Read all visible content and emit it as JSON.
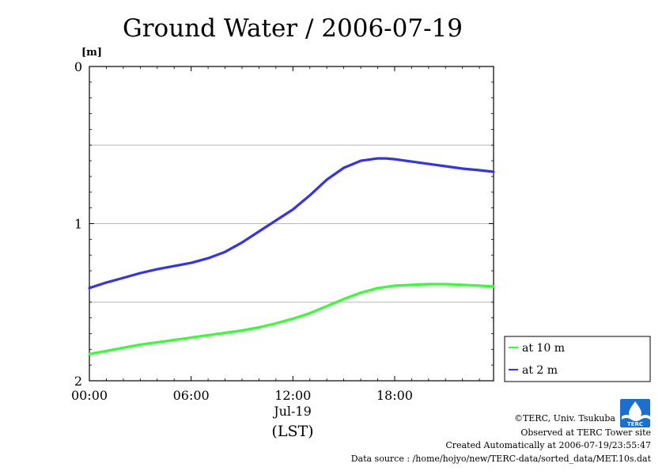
{
  "chart_data": {
    "type": "line",
    "title": "Ground Water / 2006-07-19",
    "ylabel_unit": "[m]",
    "yaxis_inverted": true,
    "ylim": [
      0,
      2
    ],
    "yticks": [
      {
        "value": 0,
        "label": "0"
      },
      {
        "value": 1,
        "label": "1"
      },
      {
        "value": 2,
        "label": "2"
      }
    ],
    "ygrid": [
      0.5,
      1,
      1.5
    ],
    "xlim_hours": [
      0,
      23.833
    ],
    "xticks": [
      {
        "hour": 0,
        "label": "00:00"
      },
      {
        "hour": 6,
        "label": "06:00"
      },
      {
        "hour": 12,
        "label": "12:00"
      },
      {
        "hour": 18,
        "label": "18:00"
      }
    ],
    "xdate_label": "Jul-19",
    "xtimezone_label": "(LST)",
    "grid": true,
    "legend_position": "right-bottom",
    "series": [
      {
        "name": "at 10 m",
        "color": "#33ff33",
        "hours": [
          0,
          1,
          2,
          3,
          4,
          5,
          6,
          7,
          8,
          9,
          10,
          11,
          12,
          13,
          14,
          15,
          16,
          17,
          18,
          19,
          20,
          21,
          22,
          23,
          23.83
        ],
        "values": [
          1.83,
          1.81,
          1.79,
          1.77,
          1.755,
          1.74,
          1.725,
          1.71,
          1.695,
          1.68,
          1.66,
          1.635,
          1.605,
          1.57,
          1.525,
          1.48,
          1.44,
          1.41,
          1.395,
          1.39,
          1.385,
          1.385,
          1.39,
          1.395,
          1.4
        ]
      },
      {
        "name": "at 2 m",
        "color": "#3333ee",
        "hours": [
          0,
          1,
          2,
          3,
          4,
          5,
          6,
          7,
          8,
          9,
          10,
          11,
          12,
          13,
          14,
          15,
          16,
          17,
          17.5,
          18,
          19,
          20,
          21,
          22,
          23,
          23.83
        ],
        "values": [
          1.41,
          1.375,
          1.345,
          1.315,
          1.29,
          1.27,
          1.25,
          1.22,
          1.18,
          1.12,
          1.05,
          0.98,
          0.91,
          0.82,
          0.72,
          0.645,
          0.6,
          0.585,
          0.585,
          0.59,
          0.605,
          0.62,
          0.635,
          0.65,
          0.66,
          0.67
        ]
      }
    ]
  },
  "footer": {
    "copyright": "©TERC, Univ. Tsukuba",
    "observed": "Observed at TERC Tower site",
    "created": "Created Automatically at 2006-07-19/23:55:47",
    "source": "Data source : /home/hojyo/new/TERC-data/sorted_data/MET.10s.dat"
  },
  "logo": {
    "name": "terc-logo",
    "text": "TERC",
    "color": "#1a6fd1"
  }
}
